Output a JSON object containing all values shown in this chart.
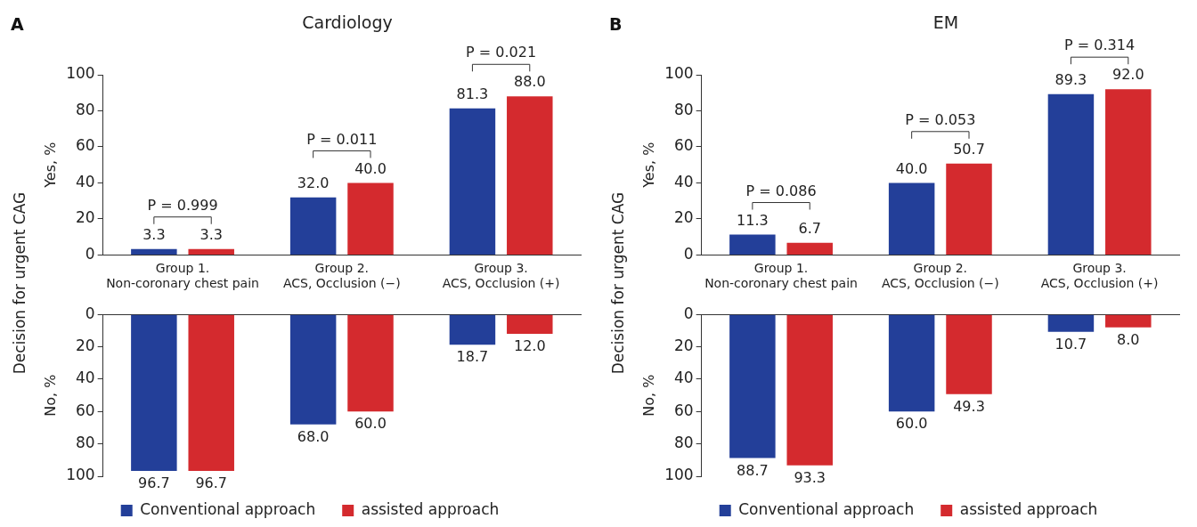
{
  "chart_data": [
    {
      "type": "bar",
      "title": "Cardiology",
      "ylabel": "Yes, %",
      "categories": [
        "Group 1.\nNon-coronary chest pain",
        "Group 2.\nACS, Occlusion (−)",
        "Group 3.\nACS, Occlusion (+)"
      ],
      "series": [
        {
          "color": "#233f99",
          "values": [
            3.3,
            32.0,
            81.3
          ],
          "value_labels": [
            "3.3",
            "32.0",
            "81.3"
          ]
        },
        {
          "color": "#d42a2e",
          "values": [
            3.3,
            40.0,
            88.0
          ],
          "value_labels": [
            "3.3",
            "40.0",
            "88.0"
          ]
        }
      ],
      "ylim": [
        0,
        100
      ],
      "yticks": [
        0,
        20,
        40,
        60,
        80,
        100
      ],
      "grid": false,
      "legend": false,
      "annotations": [
        "A",
        "Decision for urgent CAG",
        "P = 0.999",
        "P = 0.011",
        "P = 0.021"
      ]
    },
    {
      "type": "bar",
      "ylabel": "No, %",
      "categories": [
        null,
        null,
        null
      ],
      "series": [
        {
          "name": "Conventional approach",
          "color": "#233f99",
          "values": [
            96.7,
            68.0,
            18.7
          ],
          "value_labels": [
            "96.7",
            "68.0",
            "18.7"
          ]
        },
        {
          "name": "assisted approach",
          "color": "#d42a2e",
          "values": [
            96.7,
            60.0,
            12.0
          ],
          "value_labels": [
            "96.7",
            "60.0",
            "12.0"
          ]
        }
      ],
      "ylim": [
        100,
        0
      ],
      "yticks": [
        0,
        20,
        40,
        60,
        80,
        100
      ],
      "grid": false,
      "legend": "bottom",
      "tick_labels": "y"
    },
    {
      "type": "bar",
      "title": "EM",
      "ylabel": "Yes, %",
      "categories": [
        "Group 1.\nNon-coronary chest pain",
        "Group 2.\nACS, Occlusion (−)",
        "Group 3.\nACS, Occlusion (+)"
      ],
      "series": [
        {
          "color": "#233f99",
          "values": [
            11.3,
            40.0,
            89.3
          ],
          "value_labels": [
            "11.3",
            "40.0",
            "89.3"
          ]
        },
        {
          "color": "#d42a2e",
          "values": [
            6.7,
            50.7,
            92.0
          ],
          "value_labels": [
            "6.7",
            "50.7",
            "92.0"
          ]
        }
      ],
      "ylim": [
        0,
        100
      ],
      "yticks": [
        0,
        20,
        40,
        60,
        80,
        100
      ],
      "grid": false,
      "legend": false,
      "annotations": [
        "B",
        "Decision for urgent CAG",
        "P = 0.086",
        "P = 0.053",
        "P = 0.314"
      ]
    },
    {
      "type": "bar",
      "ylabel": "No, %",
      "categories": [
        null,
        null,
        null
      ],
      "series": [
        {
          "name": "Conventional approach",
          "color": "#233f99",
          "values": [
            88.7,
            60.0,
            10.7
          ],
          "value_labels": [
            "88.7",
            "60.0",
            "10.7"
          ]
        },
        {
          "name": "assisted approach",
          "color": "#d42a2e",
          "values": [
            93.3,
            49.3,
            8.0
          ],
          "value_labels": [
            "93.3",
            "49.3",
            "8.0"
          ]
        }
      ],
      "ylim": [
        100,
        0
      ],
      "yticks": [
        0,
        20,
        40,
        60,
        80,
        100
      ],
      "grid": false,
      "legend": "bottom",
      "tick_labels": "y"
    }
  ]
}
